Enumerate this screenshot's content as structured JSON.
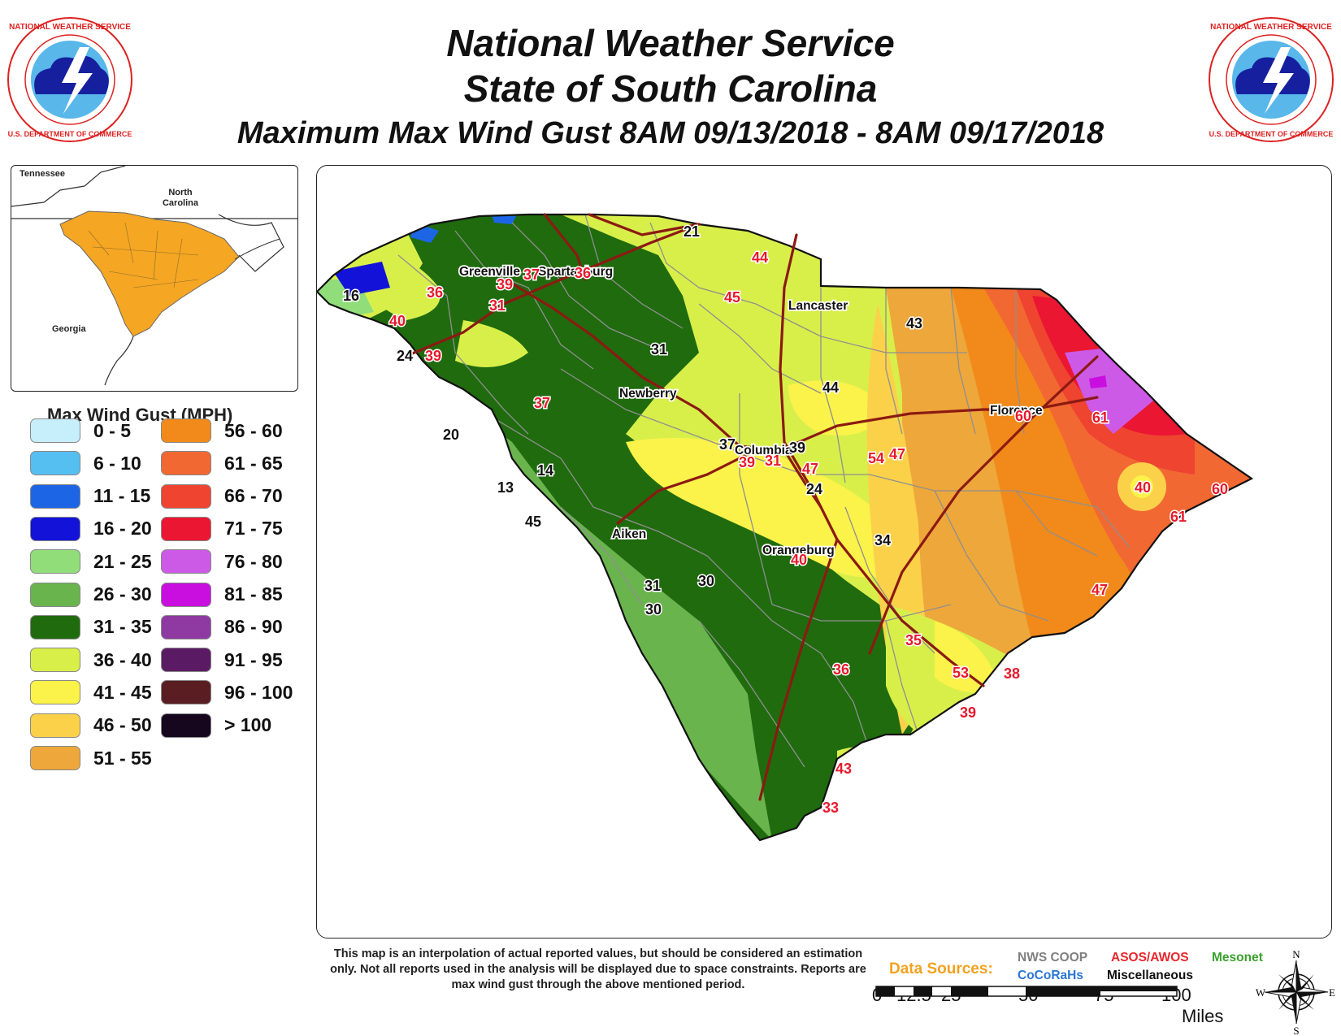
{
  "header": {
    "line1": "National Weather Service",
    "line2": "State of South Carolina",
    "line3": "Maximum Max Wind Gust 8AM 09/13/2018 - 8AM 09/17/2018",
    "seal_text_top": "NATIONAL WEATHER SERVICE",
    "seal_text_bottom": "U.S. DEPARTMENT OF COMMERCE"
  },
  "inset": {
    "labels": [
      "Tennessee",
      "North Carolina",
      "Georgia"
    ],
    "state_fill": "#f5a623"
  },
  "legend": {
    "title": "Max Wind Gust (MPH)",
    "items": [
      {
        "range": "0 - 5",
        "color": "#c6eefb"
      },
      {
        "range": "6 - 10",
        "color": "#55bff2"
      },
      {
        "range": "11 - 15",
        "color": "#1c66e6"
      },
      {
        "range": "16 - 20",
        "color": "#1212d8"
      },
      {
        "range": "21 - 25",
        "color": "#90dd7a"
      },
      {
        "range": "26 - 30",
        "color": "#6ab44e"
      },
      {
        "range": "31 - 35",
        "color": "#1f6b0e"
      },
      {
        "range": "36 - 40",
        "color": "#d8ef4a"
      },
      {
        "range": "41 - 45",
        "color": "#fbf24a"
      },
      {
        "range": "46 - 50",
        "color": "#fbd14a"
      },
      {
        "range": "51 - 55",
        "color": "#eea73a"
      },
      {
        "range": "56 - 60",
        "color": "#f18a1a"
      },
      {
        "range": "61 - 65",
        "color": "#f26833"
      },
      {
        "range": "66 - 70",
        "color": "#ee4430"
      },
      {
        "range": "71 - 75",
        "color": "#ea1632"
      },
      {
        "range": "76 - 80",
        "color": "#cd5ae6"
      },
      {
        "range": "81 - 85",
        "color": "#c80fdf"
      },
      {
        "range": "86 - 90",
        "color": "#8e3aa2"
      },
      {
        "range": "91 - 95",
        "color": "#5b1b64"
      },
      {
        "range": "96 - 100",
        "color": "#5a1e22"
      },
      {
        "range": "> 100",
        "color": "#16061e"
      }
    ]
  },
  "map": {
    "cities": [
      "Greenville",
      "Spartanburg",
      "Lancaster",
      "Newberry",
      "Columbia",
      "Florence",
      "Aiken",
      "Orangeburg"
    ],
    "observations_black": [
      "21",
      "16",
      "24",
      "20",
      "14",
      "13",
      "45",
      "31",
      "37",
      "39",
      "43",
      "44",
      "24",
      "34",
      "31",
      "30",
      "30"
    ],
    "observations_red": [
      "44",
      "45",
      "36",
      "37",
      "36",
      "39",
      "31",
      "40",
      "39",
      "37",
      "39",
      "31",
      "47",
      "54",
      "47",
      "60",
      "61",
      "40",
      "60",
      "61",
      "40",
      "47",
      "35",
      "53",
      "38",
      "36",
      "39",
      "43",
      "33"
    ]
  },
  "footer": {
    "note": "This map is an interpolation of actual reported values, but should be considered an estimation only. Not all reports used in the analysis will be displayed due to space constraints. Reports are max wind gust through the above mentioned period.",
    "data_sources_label": "Data Sources:",
    "sources": [
      {
        "name": "NWS COOP",
        "color": "#808080"
      },
      {
        "name": "ASOS/AWOS",
        "color": "#e8262c"
      },
      {
        "name": "Mesonet",
        "color": "#3ba02e"
      },
      {
        "name": "CoCoRaHs",
        "color": "#2a76d6"
      },
      {
        "name": "Miscellaneous",
        "color": "#111111"
      }
    ],
    "scale_ticks": [
      "0",
      "12.5",
      "25",
      "50",
      "75",
      "100"
    ],
    "scale_unit": "Miles",
    "compass": {
      "n": "N",
      "e": "E",
      "s": "S",
      "w": "W"
    }
  }
}
